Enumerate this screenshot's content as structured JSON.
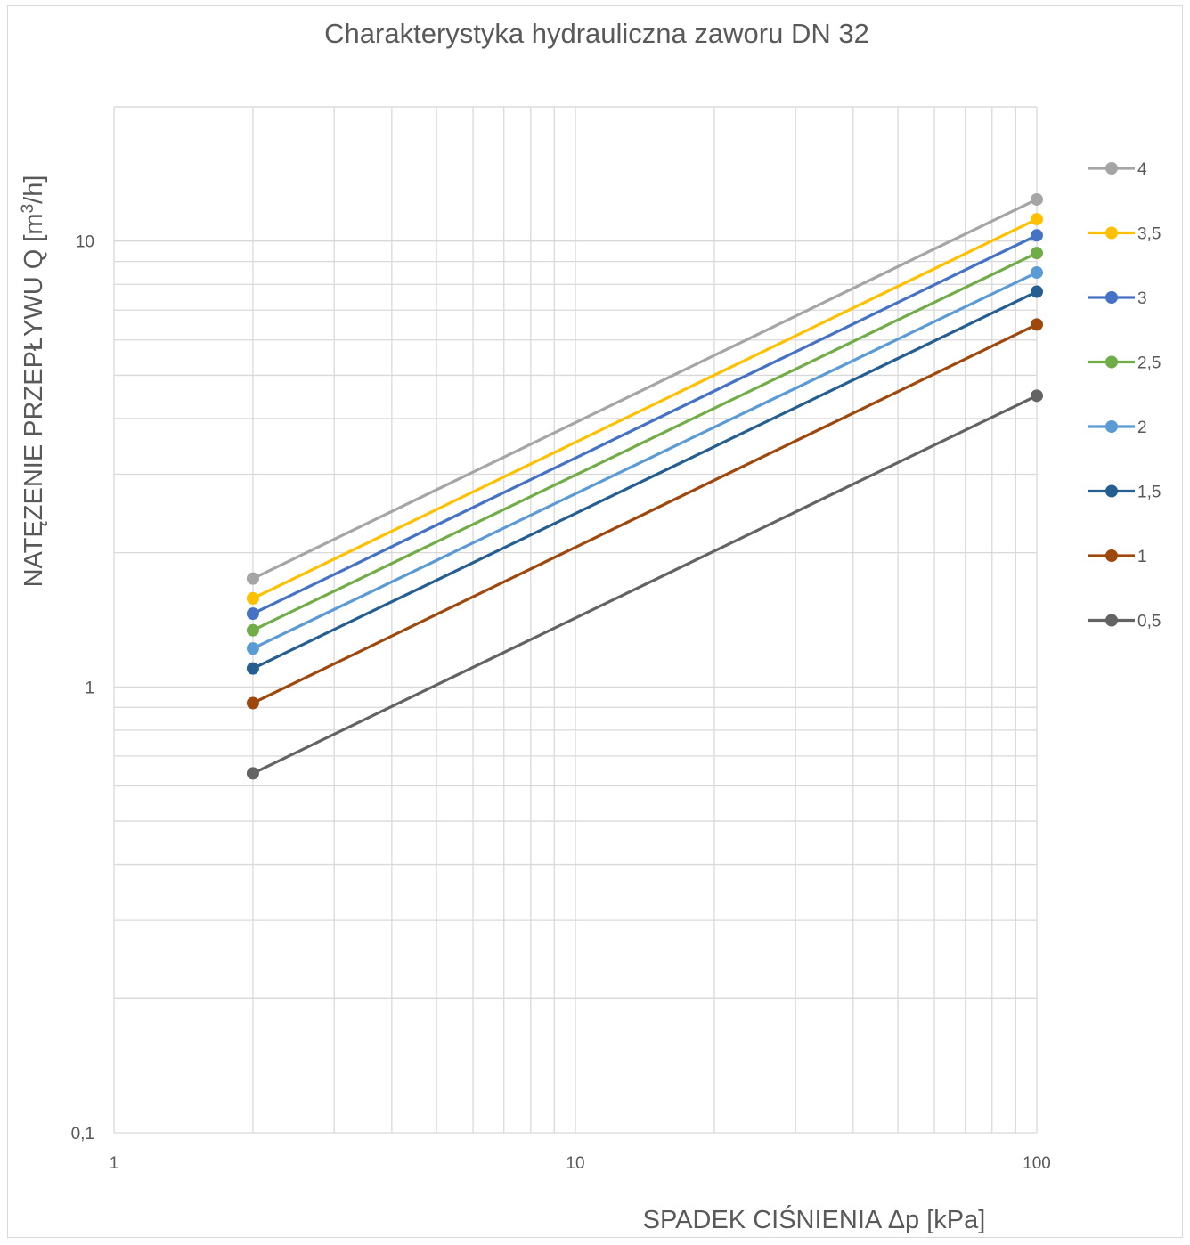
{
  "chart_data": {
    "type": "line",
    "title": "Charakterystyka hydrauliczna zaworu DN 32",
    "xlabel": "SPADEK CIŚNIENIA Δp  [kPa]",
    "ylabel_main": "NATĘZENIE PRZEPŁYWU Q  [m",
    "ylabel_sup": "3",
    "ylabel_tail": "/h]",
    "x_scale": "log",
    "y_scale": "log",
    "xlim": [
      1,
      100
    ],
    "ylim": [
      0.1,
      20
    ],
    "x_tick_labels": [
      "1",
      "10",
      "100"
    ],
    "y_tick_labels": [
      "0,1",
      "1",
      "10"
    ],
    "grid": true,
    "legend_position": "right",
    "x": [
      2,
      100
    ],
    "series": [
      {
        "name": "4",
        "color": "#a5a5a5",
        "values": [
          1.75,
          12.4
        ]
      },
      {
        "name": "3,5",
        "color": "#ffc000",
        "values": [
          1.58,
          11.2
        ]
      },
      {
        "name": "3",
        "color": "#4472c4",
        "values": [
          1.46,
          10.3
        ]
      },
      {
        "name": "2,5",
        "color": "#70ad47",
        "values": [
          1.34,
          9.4
        ]
      },
      {
        "name": "2",
        "color": "#5b9bd5",
        "values": [
          1.22,
          8.5
        ]
      },
      {
        "name": "1,5",
        "color": "#255e91",
        "values": [
          1.1,
          7.7
        ]
      },
      {
        "name": "1",
        "color": "#9e480e",
        "values": [
          0.92,
          6.5
        ]
      },
      {
        "name": "0,5",
        "color": "#636363",
        "values": [
          0.64,
          4.5
        ]
      }
    ]
  }
}
